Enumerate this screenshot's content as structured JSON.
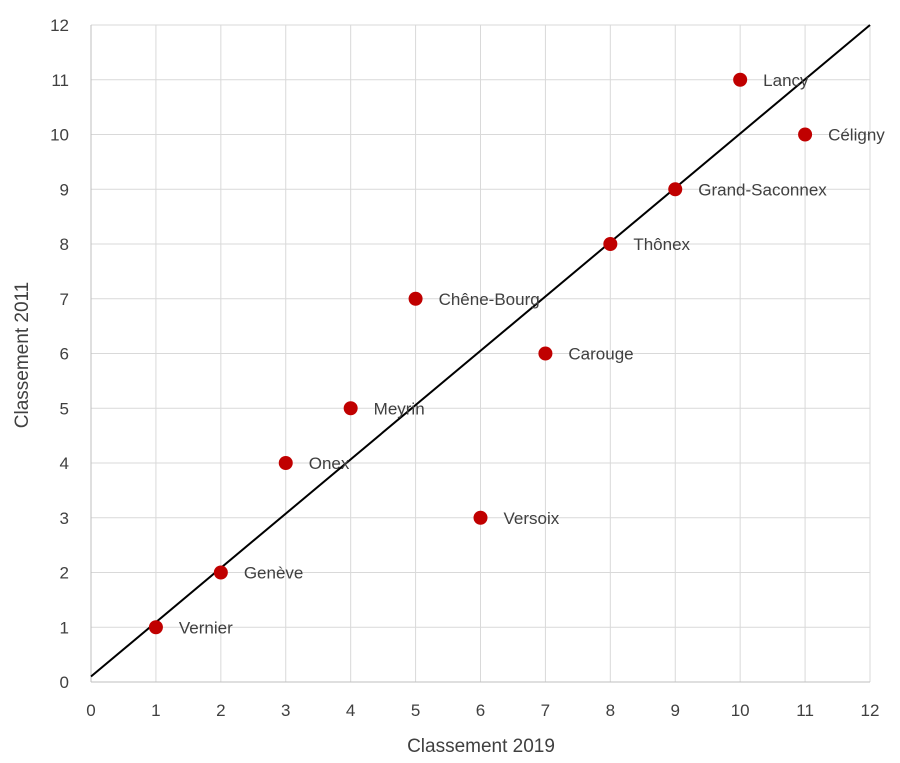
{
  "chart_data": {
    "type": "scatter",
    "title": "",
    "xlabel": "Classement 2019",
    "ylabel": "Classement 2011",
    "xlim": [
      0,
      12
    ],
    "ylim": [
      0,
      12
    ],
    "xticks": [
      0,
      1,
      2,
      3,
      4,
      5,
      6,
      7,
      8,
      9,
      10,
      11,
      12
    ],
    "yticks": [
      0,
      1,
      2,
      3,
      4,
      5,
      6,
      7,
      8,
      9,
      10,
      11,
      12
    ],
    "grid": true,
    "legend": "none",
    "marker_color": "#c00000",
    "line_color": "#000000",
    "reference_line": {
      "x": [
        0,
        12
      ],
      "y": [
        0.1,
        12
      ]
    },
    "points": [
      {
        "label": "Vernier",
        "x": 1,
        "y": 1
      },
      {
        "label": "Genève",
        "x": 2,
        "y": 2
      },
      {
        "label": "Onex",
        "x": 3,
        "y": 4
      },
      {
        "label": "Meyrin",
        "x": 4,
        "y": 5
      },
      {
        "label": "Chêne-Bourg",
        "x": 5,
        "y": 7
      },
      {
        "label": "Versoix",
        "x": 6,
        "y": 3
      },
      {
        "label": "Carouge",
        "x": 7,
        "y": 6
      },
      {
        "label": "Thônex",
        "x": 8,
        "y": 8
      },
      {
        "label": "Grand-Saconnex",
        "x": 9,
        "y": 9
      },
      {
        "label": "Lancy",
        "x": 10,
        "y": 11
      },
      {
        "label": "Céligny",
        "x": 11,
        "y": 10
      }
    ]
  }
}
